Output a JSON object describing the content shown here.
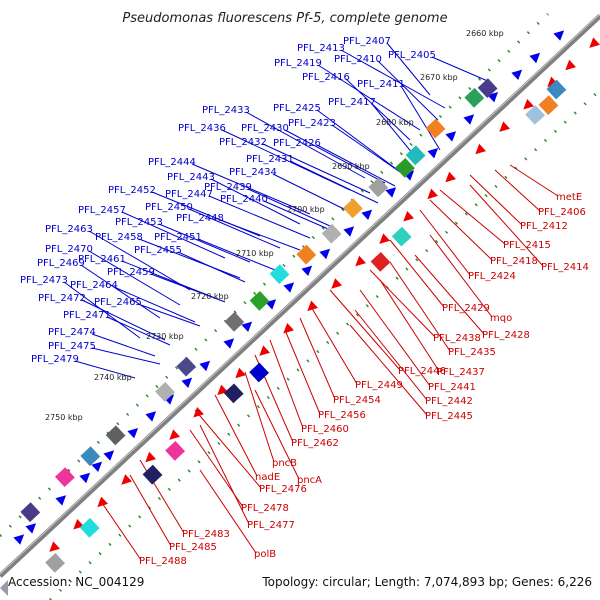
{
  "title": "Pseudomonas fluorescens Pf-5, complete genome",
  "footer": {
    "accession": "Accession: NC_004129",
    "topology": "Topology: circular; Length: 7,074,893 bp; Genes: 6,226"
  },
  "kbp_labels": [
    "2660 kbp",
    "2670 kbp",
    "2680 kbp",
    "2690 kbp",
    "2700 kbp",
    "2710 kbp",
    "2720 kbp",
    "2730 kbp",
    "2740 kbp",
    "2750 kbp"
  ],
  "forward_labels": [
    "PFL_2407",
    "PFL_2413",
    "PFL_2405",
    "PFL_2410",
    "PFL_2419",
    "PFL_2416",
    "PFL_2411",
    "PFL_2417",
    "PFL_2425",
    "PFL_2433",
    "PFL_2423",
    "PFL_2436",
    "PFL_2430",
    "PFL_2432",
    "PFL_2426",
    "PFL_2431",
    "PFL_2444",
    "PFL_2434",
    "PFL_2443",
    "PFL_2439",
    "PFL_2452",
    "PFL_2447",
    "PFL_2440",
    "PFL_2457",
    "PFL_2450",
    "PFL_2448",
    "PFL_2453",
    "PFL_2463",
    "PFL_2458",
    "PFL_2451",
    "PFL_2455",
    "PFL_2470",
    "PFL_2461",
    "PFL_2469",
    "PFL_2459",
    "PFL_2464",
    "PFL_2473",
    "PFL_2465",
    "PFL_2472",
    "PFL_2471",
    "PFL_2474",
    "PFL_2475",
    "PFL_2479"
  ],
  "reverse_labels": [
    "metE",
    "PFL_2406",
    "PFL_2412",
    "PFL_2415",
    "PFL_2418",
    "PFL_2414",
    "PFL_2424",
    "PFL_2429",
    "mqo",
    "PFL_2428",
    "PFL_2438",
    "PFL_2435",
    "PFL_2437",
    "PFL_2446",
    "PFL_2441",
    "PFL_2449",
    "PFL_2442",
    "PFL_2454",
    "PFL_2445",
    "PFL_2456",
    "PFL_2460",
    "PFL_2462",
    "pncB",
    "nadE",
    "pncA",
    "PFL_2476",
    "PFL_2478",
    "PFL_2477",
    "PFL_2483",
    "PFL_2485",
    "polB",
    "PFL_2488"
  ],
  "colors": {
    "forward": "#0000ee",
    "reverse": "#ee0000",
    "backbone": "#808080",
    "tick": "#2e8b2e"
  }
}
